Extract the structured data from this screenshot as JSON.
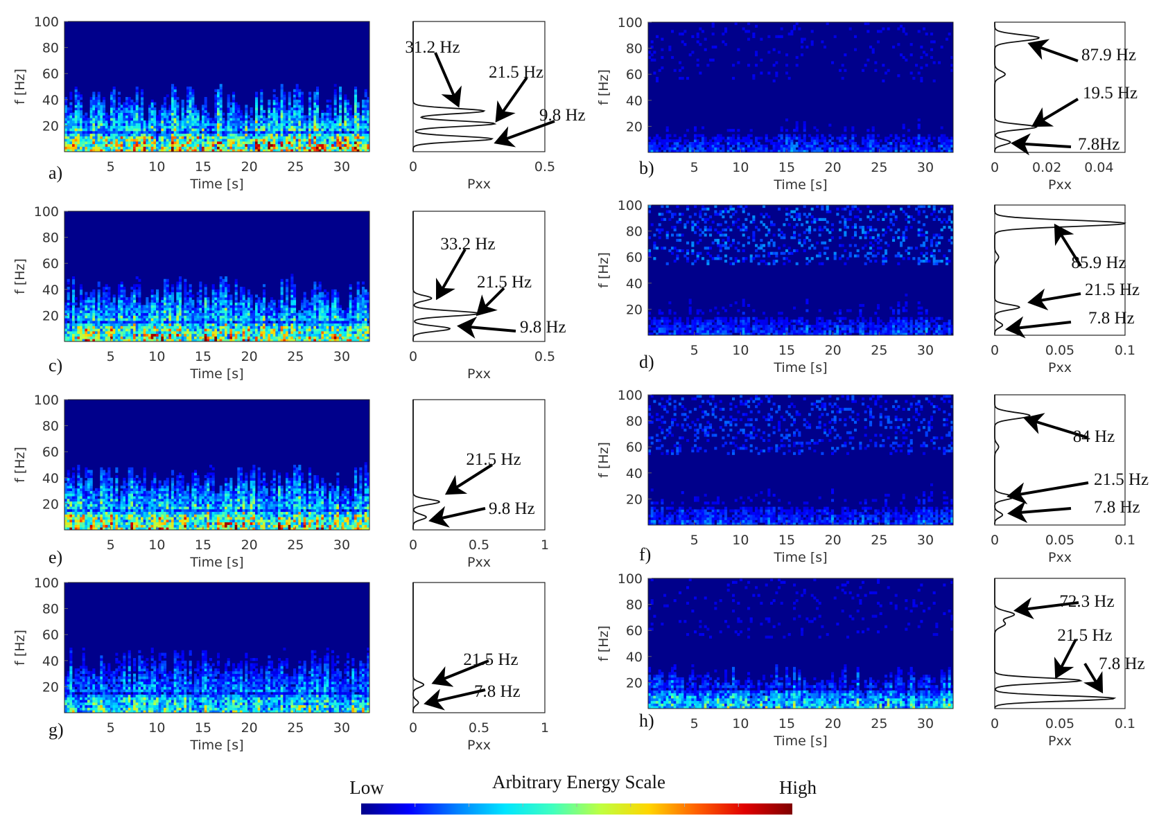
{
  "colorbar": {
    "title": "Arbitrary Energy Scale",
    "low_label": "Low",
    "high_label": "High",
    "colors": [
      "#00008b",
      "#0000ff",
      "#0080ff",
      "#00e5ff",
      "#40ffbf",
      "#bfff40",
      "#ffd500",
      "#ff6000",
      "#e00000",
      "#800000"
    ]
  },
  "chart_data": [
    {
      "panel": "a)",
      "type": "heatmap",
      "xlabel": "Time [s]",
      "ylabel": "f [Hz]",
      "xlim": [
        0,
        33
      ],
      "ylim": [
        0,
        100
      ],
      "xticks": [
        5,
        10,
        15,
        20,
        25,
        30
      ],
      "yticks": [
        20,
        40,
        60,
        80,
        100
      ],
      "energy_band_top_hz": 45,
      "energy_level": 0.85,
      "high_band_level": 0,
      "psd": {
        "type": "line",
        "xlabel": "Pxx",
        "xlim": [
          0,
          0.5
        ],
        "xticks": [
          "0",
          "0.5"
        ],
        "peaks": [
          {
            "f": 9.8,
            "pxx": 0.3
          },
          {
            "f": 21.5,
            "pxx": 0.31
          },
          {
            "f": 31.2,
            "pxx": 0.27
          }
        ],
        "labels": [
          "31.2 Hz",
          "21.5 Hz",
          "9.8 Hz"
        ]
      }
    },
    {
      "panel": "b)",
      "type": "heatmap",
      "xlabel": "Time [s]",
      "ylabel": "f [Hz]",
      "xlim": [
        0,
        33
      ],
      "ylim": [
        0,
        100
      ],
      "xticks": [
        5,
        10,
        15,
        20,
        25,
        30
      ],
      "yticks": [
        20,
        40,
        60,
        80,
        100
      ],
      "energy_band_top_hz": 25,
      "energy_level": 0.22,
      "high_band_level": 0.1,
      "psd": {
        "type": "line",
        "xlabel": "Pxx",
        "xlim": [
          0,
          0.05
        ],
        "xticks": [
          "0",
          "0.02",
          "0.04"
        ],
        "peaks": [
          {
            "f": 7.8,
            "pxx": 0.006
          },
          {
            "f": 19.5,
            "pxx": 0.016
          },
          {
            "f": 60,
            "pxx": 0.004
          },
          {
            "f": 87.9,
            "pxx": 0.017
          }
        ],
        "labels": [
          "87.9 Hz",
          "19.5 Hz",
          "7.8Hz"
        ]
      }
    },
    {
      "panel": "c)",
      "type": "heatmap",
      "xlabel": "Time [s]",
      "ylabel": "f [Hz]",
      "xlim": [
        0,
        33
      ],
      "ylim": [
        0,
        100
      ],
      "xticks": [
        5,
        10,
        15,
        20,
        25,
        30
      ],
      "yticks": [
        20,
        40,
        60,
        80,
        100
      ],
      "energy_band_top_hz": 45,
      "energy_level": 0.8,
      "high_band_level": 0,
      "psd": {
        "type": "line",
        "xlabel": "Pxx",
        "xlim": [
          0,
          0.5
        ],
        "xticks": [
          "0",
          "0.5"
        ],
        "peaks": [
          {
            "f": 9.8,
            "pxx": 0.14
          },
          {
            "f": 21.5,
            "pxx": 0.25
          },
          {
            "f": 33.2,
            "pxx": 0.07
          }
        ],
        "labels": [
          "33.2 Hz",
          "21.5 Hz",
          "9.8 Hz"
        ]
      }
    },
    {
      "panel": "d)",
      "type": "heatmap",
      "xlabel": "Time [s]",
      "ylabel": "f [Hz]",
      "xlim": [
        0,
        33
      ],
      "ylim": [
        0,
        100
      ],
      "xticks": [
        5,
        10,
        15,
        20,
        25,
        30
      ],
      "yticks": [
        20,
        40,
        60,
        80,
        100
      ],
      "energy_band_top_hz": 30,
      "energy_level": 0.22,
      "high_band_level": 0.25,
      "psd": {
        "type": "line",
        "xlabel": "Pxx",
        "xlim": [
          0,
          0.1
        ],
        "xticks": [
          "0",
          "0.05",
          "0.1"
        ],
        "peaks": [
          {
            "f": 7.8,
            "pxx": 0.006
          },
          {
            "f": 21.5,
            "pxx": 0.019
          },
          {
            "f": 60,
            "pxx": 0.003
          },
          {
            "f": 85.9,
            "pxx": 0.1
          }
        ],
        "labels": [
          "85.9 Hz",
          "21.5 Hz",
          "7.8 Hz"
        ]
      }
    },
    {
      "panel": "e)",
      "type": "heatmap",
      "xlabel": "Time [s]",
      "ylabel": "f [Hz]",
      "xlim": [
        0,
        33
      ],
      "ylim": [
        0,
        100
      ],
      "xticks": [
        5,
        10,
        15,
        20,
        25,
        30
      ],
      "yticks": [
        20,
        40,
        60,
        80,
        100
      ],
      "energy_band_top_hz": 45,
      "energy_level": 0.8,
      "high_band_level": 0,
      "psd": {
        "type": "line",
        "xlabel": "Pxx",
        "xlim": [
          0,
          1
        ],
        "xticks": [
          "0",
          "0.5",
          "1"
        ],
        "peaks": [
          {
            "f": 9.8,
            "pxx": 0.1
          },
          {
            "f": 21.5,
            "pxx": 0.2
          }
        ],
        "labels": [
          "21.5 Hz",
          "9.8 Hz"
        ]
      }
    },
    {
      "panel": "f)",
      "type": "heatmap",
      "xlabel": "Time [s]",
      "ylabel": "f [Hz]",
      "xlim": [
        0,
        33
      ],
      "ylim": [
        0,
        100
      ],
      "xticks": [
        5,
        10,
        15,
        20,
        25,
        30
      ],
      "yticks": [
        20,
        40,
        60,
        80,
        100
      ],
      "energy_band_top_hz": 30,
      "energy_level": 0.22,
      "high_band_level": 0.2,
      "psd": {
        "type": "line",
        "xlabel": "Pxx",
        "xlim": [
          0,
          0.1
        ],
        "xticks": [
          "0",
          "0.05",
          "0.1"
        ],
        "peaks": [
          {
            "f": 7.8,
            "pxx": 0.006
          },
          {
            "f": 21.5,
            "pxx": 0.015
          },
          {
            "f": 60,
            "pxx": 0.003
          },
          {
            "f": 84,
            "pxx": 0.027
          }
        ],
        "labels": [
          "84 Hz",
          "21.5 Hz",
          "7.8 Hz"
        ]
      }
    },
    {
      "panel": "g)",
      "type": "heatmap",
      "xlabel": "Time [s]",
      "ylabel": "f [Hz]",
      "xlim": [
        0,
        33
      ],
      "ylim": [
        0,
        100
      ],
      "xticks": [
        5,
        10,
        15,
        20,
        25,
        30
      ],
      "yticks": [
        20,
        40,
        60,
        80,
        100
      ],
      "energy_band_top_hz": 45,
      "energy_level": 0.55,
      "high_band_level": 0,
      "psd": {
        "type": "line",
        "xlabel": "Pxx",
        "xlim": [
          0,
          1
        ],
        "xticks": [
          "0",
          "0.5",
          "1"
        ],
        "peaks": [
          {
            "f": 7.8,
            "pxx": 0.04
          },
          {
            "f": 21.5,
            "pxx": 0.08
          }
        ],
        "labels": [
          "21.5 Hz",
          "7.8 Hz"
        ]
      }
    },
    {
      "panel": "h)",
      "type": "heatmap",
      "xlabel": "Time [s]",
      "ylabel": "f [Hz]",
      "xlim": [
        0,
        33
      ],
      "ylim": [
        0,
        100
      ],
      "xticks": [
        5,
        10,
        15,
        20,
        25,
        30
      ],
      "yticks": [
        20,
        40,
        60,
        80,
        100
      ],
      "energy_band_top_hz": 30,
      "energy_level": 0.5,
      "high_band_level": 0.1,
      "psd": {
        "type": "line",
        "xlabel": "Pxx",
        "xlim": [
          0,
          0.1
        ],
        "xticks": [
          "0",
          "0.05",
          "0.1"
        ],
        "peaks": [
          {
            "f": 7.8,
            "pxx": 0.092
          },
          {
            "f": 21.5,
            "pxx": 0.066
          },
          {
            "f": 65,
            "pxx": 0.008
          },
          {
            "f": 72.3,
            "pxx": 0.015
          }
        ],
        "labels": [
          "72.3 Hz",
          "21.5 Hz",
          "7.8 Hz"
        ]
      }
    }
  ]
}
